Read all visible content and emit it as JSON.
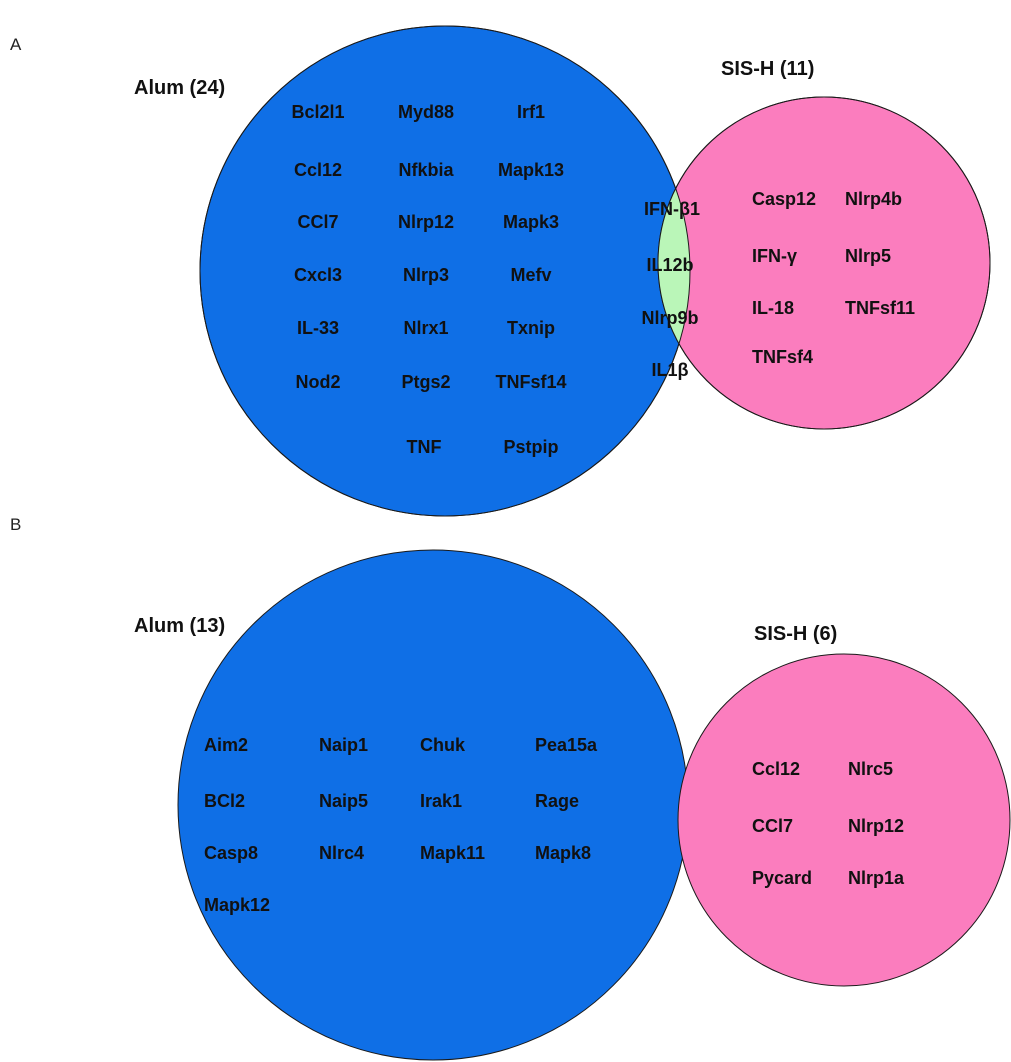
{
  "colors": {
    "alum": "#0f6fe6",
    "sis_h": "#fb7dbe",
    "overlap": "#baf6b8",
    "outline": "#1a1a1a"
  },
  "panel_a": {
    "letter": "A",
    "alum_title": "Alum (24)",
    "sis_title": "SIS-H (11)",
    "alum_only": [
      "Bcl2l1",
      "Myd88",
      "Irf1",
      "Ccl12",
      "Nfkbia",
      "Mapk13",
      "CCl7",
      "Nlrp12",
      "Mapk3",
      "Cxcl3",
      "Nlrp3",
      "Mefv",
      "IL-33",
      "Nlrx1",
      "Txnip",
      "Nod2",
      "Ptgs2",
      "TNFsf14",
      "TNF",
      "Pstpip"
    ],
    "shared": [
      "IFN-β1",
      "IL12b",
      "Nlrp9b",
      "IL1β"
    ],
    "sis_only": [
      "Casp12",
      "Nlrp4b",
      "IFN-γ",
      "Nlrp5",
      "IL-18",
      "TNFsf11",
      "TNFsf4"
    ]
  },
  "panel_b": {
    "letter": "B",
    "alum_title": "Alum (13)",
    "sis_title": "SIS-H (6)",
    "alum_only": [
      "Aim2",
      "Naip1",
      "Chuk",
      "Pea15a",
      "BCl2",
      "Naip5",
      "Irak1",
      "Rage",
      "Casp8",
      "Nlrc4",
      "Mapk11",
      "Mapk8",
      "Mapk12"
    ],
    "sis_only": [
      "Ccl12",
      "Nlrc5",
      "CCl7",
      "Nlrp12",
      "Pycard",
      "Nlrp1a"
    ]
  }
}
